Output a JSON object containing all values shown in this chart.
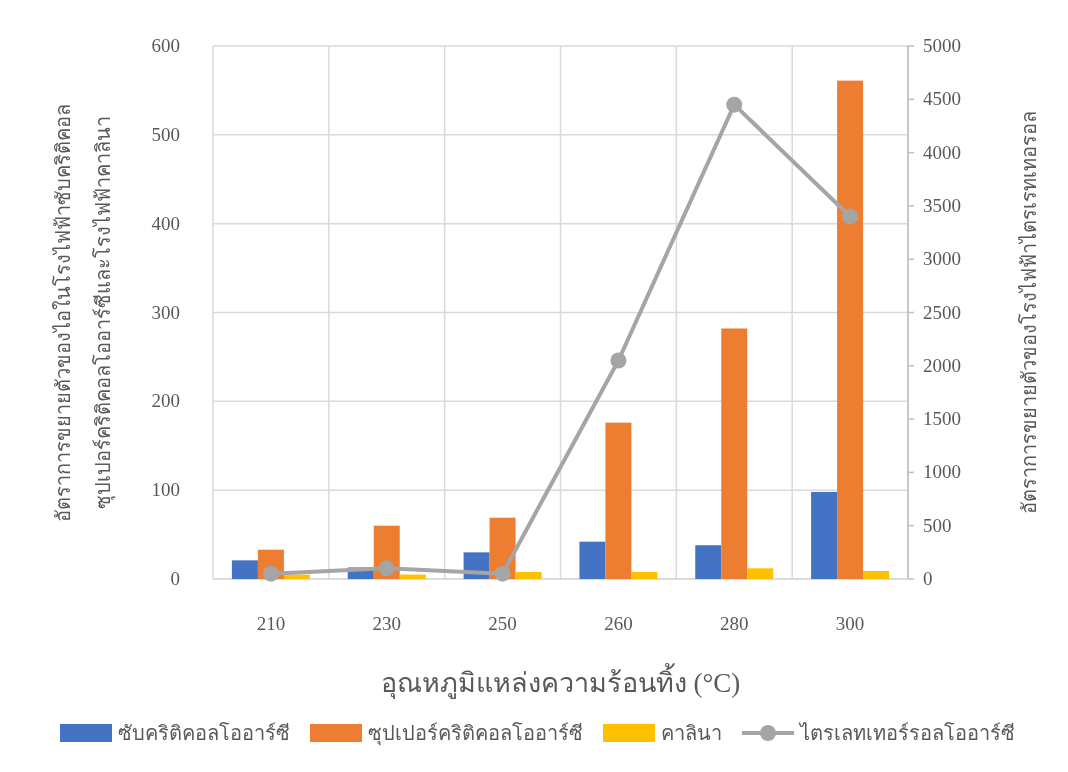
{
  "chart_data": {
    "type": "bar",
    "categories": [
      "210",
      "230",
      "250",
      "260",
      "280",
      "300"
    ],
    "xlabel": "อุณหภูมิแหล่งความร้อนทิ้ง (°C)",
    "ylabel": "อัตราการขยายตัวของไอในโรงไฟฟ้าซับคริติคอล\nซุปเปอร์คริติคอลโออาร์ซีและโรงไฟฟ้าคาลินา",
    "y2label": "อัตราการขยายตัวของโรงไฟฟ้าไตรเรทเทอรอล",
    "ylim": [
      0,
      600
    ],
    "yticks": [
      0,
      100,
      200,
      300,
      400,
      500,
      600
    ],
    "y2lim": [
      0,
      5000
    ],
    "y2ticks": [
      0,
      500,
      1000,
      1500,
      2000,
      2500,
      3000,
      3500,
      4000,
      4500,
      5000
    ],
    "grid": true,
    "legend": "bottom",
    "series": [
      {
        "name": "ซับคริติคอลโออาร์ซี",
        "color": "#4472c4",
        "values": [
          21,
          13,
          30,
          42,
          38,
          98
        ]
      },
      {
        "name": "ซุปเปอร์คริติคอลโออาร์ซี",
        "color": "#ed7d31",
        "values": [
          33,
          60,
          69,
          176,
          282,
          561
        ]
      },
      {
        "name": "คาลินา",
        "color": "#ffc000",
        "values": [
          5,
          5,
          8,
          8,
          12,
          9
        ]
      },
      {
        "name": "ไตรเลทเทอร์รอลโออาร์ซี",
        "color": "#a5a5a5",
        "type": "line",
        "axis": "y2",
        "marker": "circle",
        "values": [
          50,
          100,
          50,
          2050,
          4450,
          3400
        ]
      }
    ]
  }
}
